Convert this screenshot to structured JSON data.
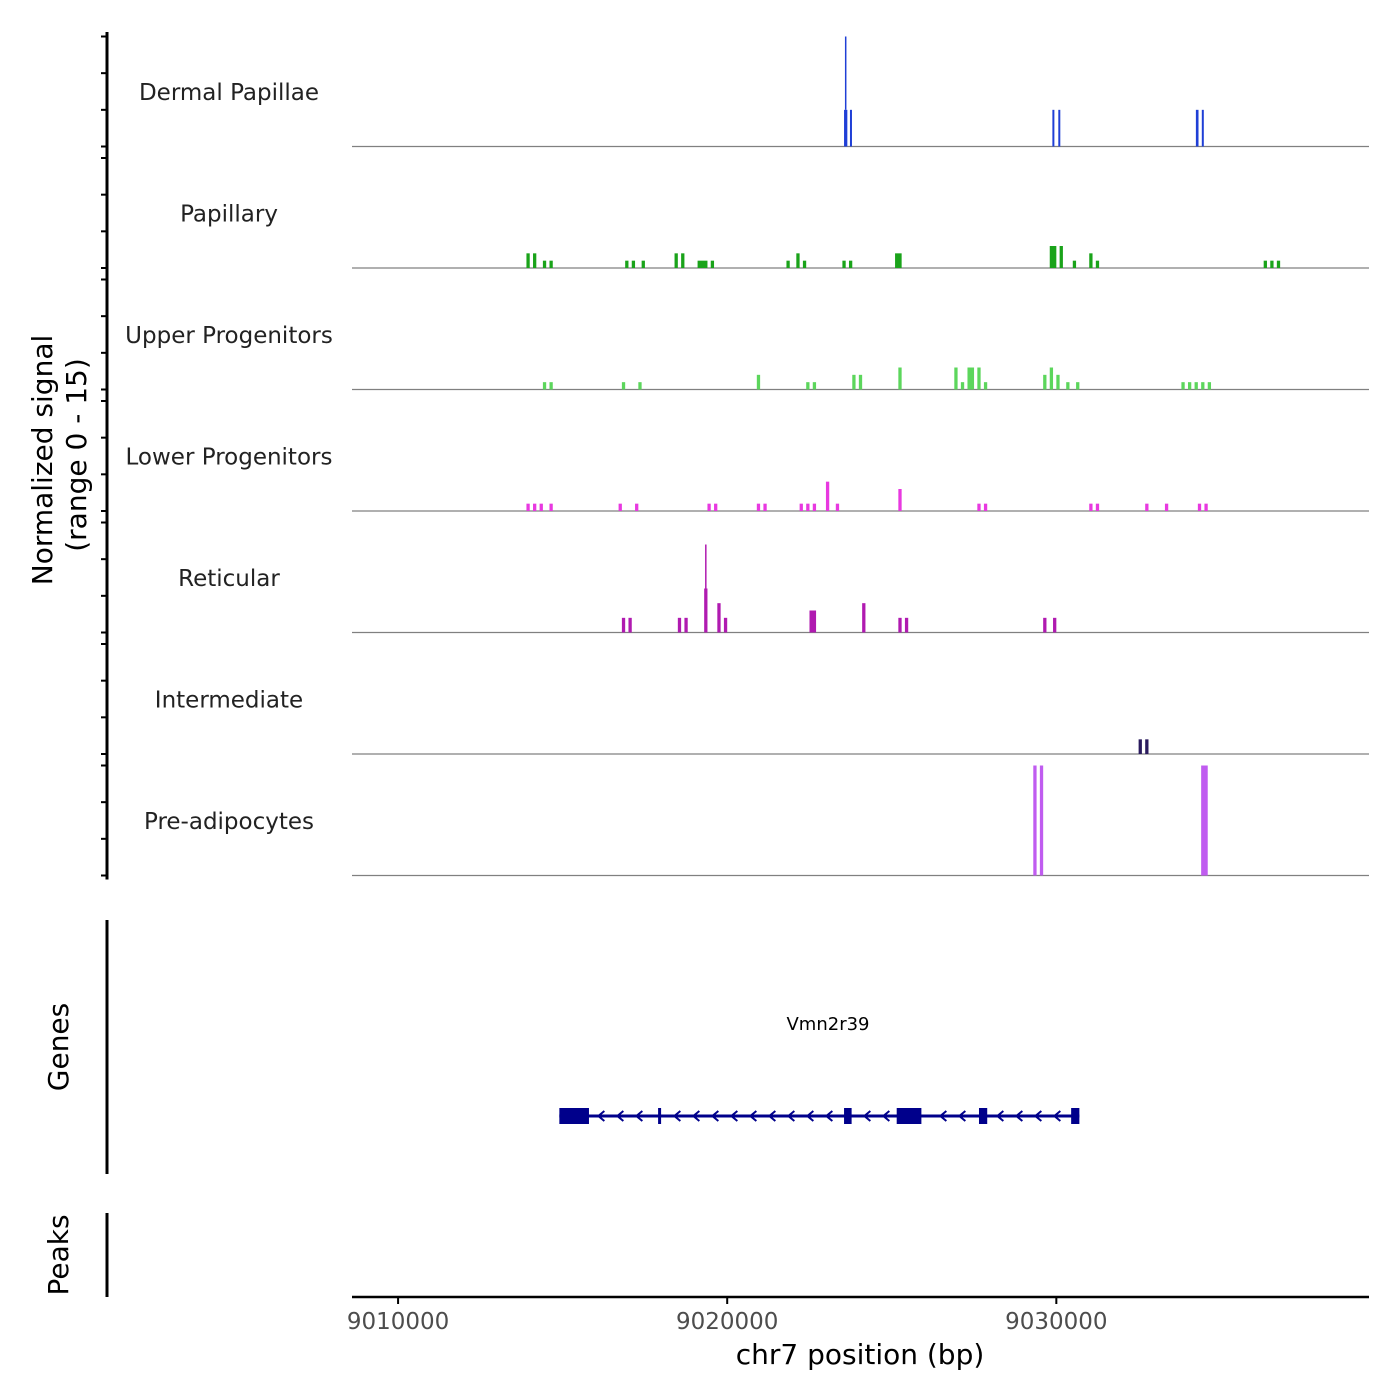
{
  "chart_data": {
    "type": "coverage",
    "signal_axis_label_line1": "Normalized signal",
    "signal_axis_label_line2": "(range 0 - 15)",
    "signal_range": [
      0,
      15
    ],
    "genes_label": "Genes",
    "peaks_label": "Peaks",
    "xlabel": "chr7 position (bp)",
    "xlim": [
      9008600,
      9039500
    ],
    "x_ticks": [
      {
        "value": 9010000,
        "label": "9010000"
      },
      {
        "value": 9020000,
        "label": "9020000"
      },
      {
        "value": 9030000,
        "label": "9030000"
      }
    ],
    "tracks": [
      {
        "name": "Dermal Papillae",
        "color": "#1f3fd6",
        "peaks": [
          [
            9023550,
            9023650,
            5,
            10
          ],
          [
            9023730,
            9023790,
            5
          ],
          [
            9029880,
            9029940,
            5
          ],
          [
            9030060,
            9030120,
            5
          ],
          [
            9034240,
            9034320,
            5
          ],
          [
            9034420,
            9034480,
            5
          ]
        ]
      },
      {
        "name": "Papillary",
        "color": "#1aa31a",
        "peaks": [
          [
            9013900,
            9014000,
            2
          ],
          [
            9014100,
            9014200,
            2
          ],
          [
            9014400,
            9014500,
            1
          ],
          [
            9014600,
            9014700,
            1
          ],
          [
            9016900,
            9017000,
            1
          ],
          [
            9017100,
            9017200,
            1
          ],
          [
            9017400,
            9017500,
            1
          ],
          [
            9018400,
            9018500,
            2
          ],
          [
            9018600,
            9018700,
            2
          ],
          [
            9019100,
            9019400,
            1
          ],
          [
            9019500,
            9019600,
            1
          ],
          [
            9021800,
            9021900,
            1
          ],
          [
            9022100,
            9022200,
            2
          ],
          [
            9022300,
            9022400,
            1
          ],
          [
            9023500,
            9023600,
            1
          ],
          [
            9023700,
            9023800,
            1
          ],
          [
            9025100,
            9025300,
            2
          ],
          [
            9029800,
            9030000,
            3
          ],
          [
            9030100,
            9030200,
            3
          ],
          [
            9030500,
            9030600,
            1
          ],
          [
            9031000,
            9031100,
            2
          ],
          [
            9031200,
            9031300,
            1
          ],
          [
            9036300,
            9036400,
            1
          ],
          [
            9036500,
            9036600,
            1
          ],
          [
            9036700,
            9036800,
            1
          ]
        ]
      },
      {
        "name": "Upper Progenitors",
        "color": "#5cd65c",
        "peaks": [
          [
            9014400,
            9014500,
            1
          ],
          [
            9014600,
            9014700,
            1
          ],
          [
            9016800,
            9016900,
            1
          ],
          [
            9017300,
            9017400,
            1
          ],
          [
            9020900,
            9021000,
            2
          ],
          [
            9022400,
            9022500,
            1
          ],
          [
            9022600,
            9022700,
            1
          ],
          [
            9023800,
            9023900,
            2
          ],
          [
            9024000,
            9024100,
            2
          ],
          [
            9025200,
            9025300,
            3
          ],
          [
            9026900,
            9027000,
            3
          ],
          [
            9027100,
            9027200,
            1
          ],
          [
            9027300,
            9027500,
            3
          ],
          [
            9027600,
            9027700,
            3
          ],
          [
            9027800,
            9027900,
            1
          ],
          [
            9029600,
            9029700,
            2
          ],
          [
            9029800,
            9029900,
            3
          ],
          [
            9030000,
            9030100,
            2
          ],
          [
            9030300,
            9030400,
            1
          ],
          [
            9030600,
            9030700,
            1
          ],
          [
            9033800,
            9033900,
            1
          ],
          [
            9034000,
            9034100,
            1
          ],
          [
            9034200,
            9034300,
            1
          ],
          [
            9034400,
            9034500,
            1
          ],
          [
            9034600,
            9034700,
            1
          ]
        ]
      },
      {
        "name": "Lower Progenitors",
        "color": "#e839e0",
        "peaks": [
          [
            9013900,
            9014000,
            1
          ],
          [
            9014100,
            9014200,
            1
          ],
          [
            9014300,
            9014400,
            1
          ],
          [
            9014600,
            9014700,
            1
          ],
          [
            9016700,
            9016800,
            1
          ],
          [
            9017200,
            9017300,
            1
          ],
          [
            9019400,
            9019500,
            1
          ],
          [
            9019600,
            9019700,
            1
          ],
          [
            9020900,
            9021000,
            1
          ],
          [
            9021100,
            9021200,
            1
          ],
          [
            9022200,
            9022300,
            1
          ],
          [
            9022400,
            9022500,
            1
          ],
          [
            9022600,
            9022700,
            1
          ],
          [
            9023000,
            9023100,
            4
          ],
          [
            9023300,
            9023400,
            1
          ],
          [
            9025200,
            9025300,
            3
          ],
          [
            9027600,
            9027700,
            1
          ],
          [
            9027800,
            9027900,
            1
          ],
          [
            9031000,
            9031100,
            1
          ],
          [
            9031200,
            9031300,
            1
          ],
          [
            9032700,
            9032800,
            1
          ],
          [
            9033300,
            9033400,
            1
          ],
          [
            9034300,
            9034400,
            1
          ],
          [
            9034500,
            9034600,
            1
          ]
        ]
      },
      {
        "name": "Reticular",
        "color": "#b01ab0",
        "peaks": [
          [
            9016800,
            9016900,
            2
          ],
          [
            9017000,
            9017100,
            2
          ],
          [
            9018500,
            9018600,
            2
          ],
          [
            9018700,
            9018800,
            2
          ],
          [
            9019300,
            9019400,
            6,
            6
          ],
          [
            9019700,
            9019800,
            4
          ],
          [
            9019900,
            9020000,
            2
          ],
          [
            9022500,
            9022700,
            3
          ],
          [
            9024100,
            9024200,
            4
          ],
          [
            9025200,
            9025300,
            2
          ],
          [
            9025400,
            9025500,
            2
          ],
          [
            9029600,
            9029700,
            2
          ],
          [
            9029900,
            9030000,
            2
          ]
        ]
      },
      {
        "name": "Intermediate",
        "color": "#2a1a5e",
        "peaks": [
          [
            9032500,
            9032600,
            2
          ],
          [
            9032700,
            9032800,
            2
          ]
        ]
      },
      {
        "name": "Pre-adipocytes",
        "color": "#c05cf0",
        "peaks": [
          [
            9029300,
            9029400,
            15
          ],
          [
            9029500,
            9029600,
            15
          ],
          [
            9034400,
            9034600,
            15,
            15
          ]
        ]
      }
    ],
    "gene": {
      "name": "Vmn2r39",
      "strand": "-",
      "start": 9014900,
      "end": 9030700,
      "color": "#00008b",
      "exons": [
        [
          9014900,
          9015800
        ],
        [
          9017900,
          9017960
        ],
        [
          9023550,
          9023780
        ],
        [
          9025150,
          9025900
        ],
        [
          9027650,
          9027900
        ],
        [
          9030450,
          9030700
        ]
      ]
    }
  }
}
